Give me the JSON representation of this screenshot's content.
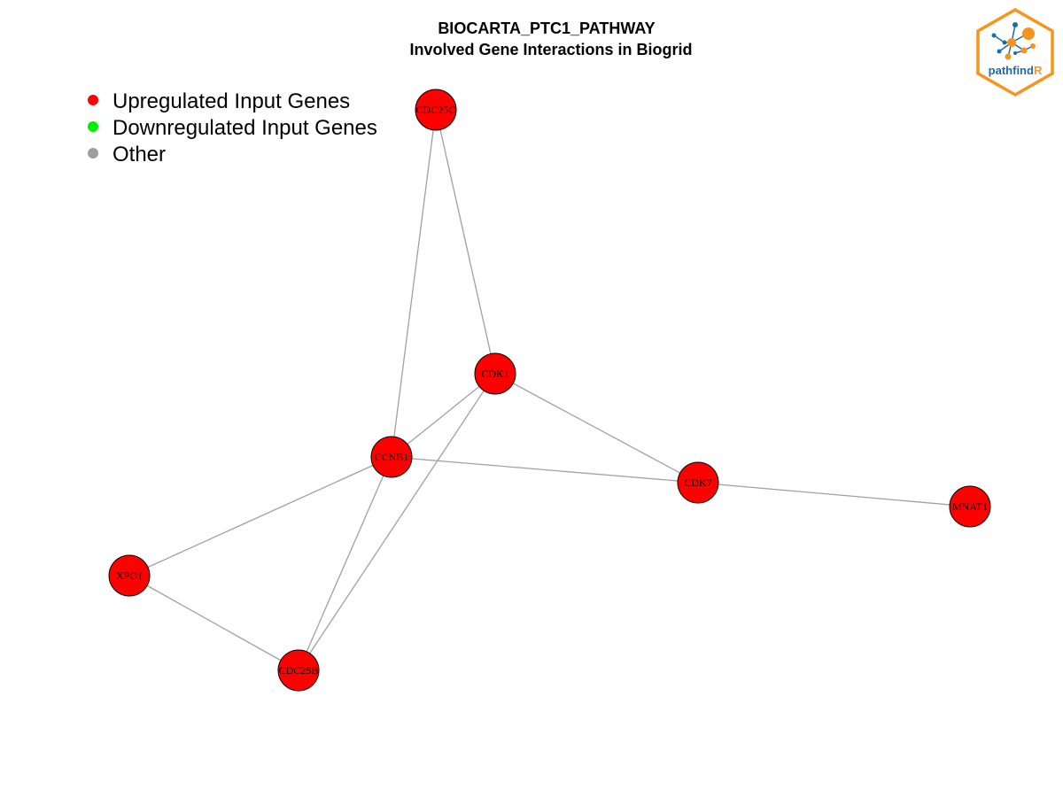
{
  "title": {
    "line1": "BIOCARTA_PTC1_PATHWAY",
    "line2": "Involved Gene Interactions in Biogrid"
  },
  "legend": [
    {
      "label": "Upregulated Input Genes",
      "color": "#ff0000"
    },
    {
      "label": "Downregulated Input Genes",
      "color": "#00ee00"
    },
    {
      "label": "Other",
      "color": "#9e9e9e"
    }
  ],
  "colors": {
    "node_fill": "#ff0000",
    "node_stroke": "#000000",
    "edge": "#a0a0a0",
    "logo_orange": "#f7941d",
    "logo_blue": "#1b6ca8"
  },
  "logo": {
    "text_main": "pathfind",
    "text_accent": "R"
  },
  "nodes": [
    {
      "id": "CDC25C",
      "label": "CDC25C",
      "status": "upregulated"
    },
    {
      "id": "CDK1",
      "label": "CDK1",
      "status": "upregulated"
    },
    {
      "id": "CCNB1",
      "label": "CCNB1",
      "status": "upregulated"
    },
    {
      "id": "CDK7",
      "label": "CDK7",
      "status": "upregulated"
    },
    {
      "id": "MNAT1",
      "label": "MNAT1",
      "status": "upregulated"
    },
    {
      "id": "XPO1",
      "label": "XPO1",
      "status": "upregulated"
    },
    {
      "id": "CDC25B",
      "label": "CDC25B",
      "status": "upregulated"
    }
  ],
  "edges": [
    {
      "source": "CDC25C",
      "target": "CDK1"
    },
    {
      "source": "CDC25C",
      "target": "CCNB1"
    },
    {
      "source": "CDK1",
      "target": "CCNB1"
    },
    {
      "source": "CDK1",
      "target": "CDK7"
    },
    {
      "source": "CDK1",
      "target": "CDC25B"
    },
    {
      "source": "CCNB1",
      "target": "CDK7"
    },
    {
      "source": "CCNB1",
      "target": "XPO1"
    },
    {
      "source": "CCNB1",
      "target": "CDC25B"
    },
    {
      "source": "CDK7",
      "target": "MNAT1"
    },
    {
      "source": "XPO1",
      "target": "CDC25B"
    }
  ]
}
